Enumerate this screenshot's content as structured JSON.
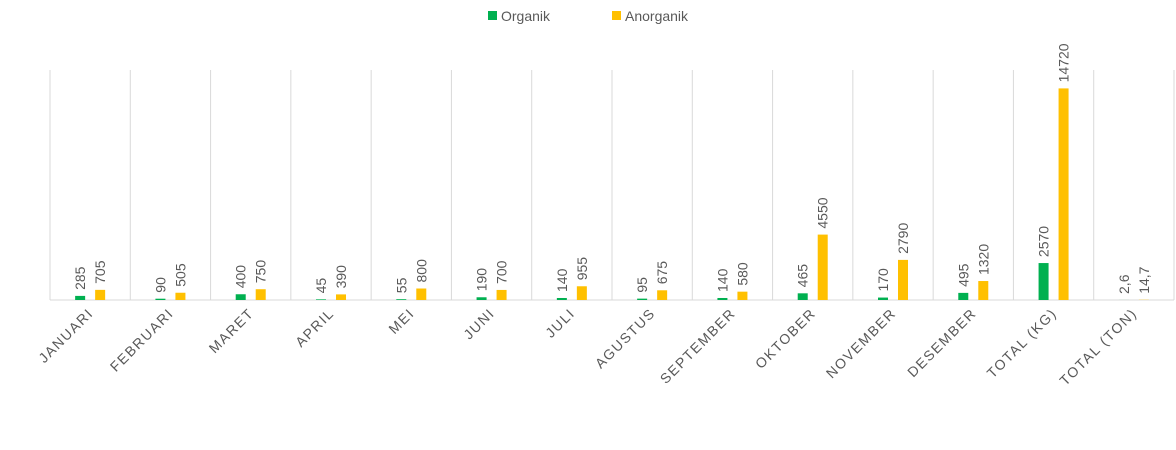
{
  "chart_data": {
    "type": "bar",
    "categories": [
      "JANUARI",
      "FEBRUARI",
      "MARET",
      "APRIL",
      "MEI",
      "JUNI",
      "JULI",
      "AGUSTUS",
      "SEPTEMBER",
      "OKTOBER",
      "NOVEMBER",
      "DESEMBER",
      "TOTAL (KG)",
      "TOTAL (TON)"
    ],
    "series": [
      {
        "name": "Organik",
        "color": "#00b050",
        "values": [
          285,
          90,
          400,
          45,
          55,
          190,
          140,
          95,
          140,
          465,
          170,
          495,
          2570,
          2.6
        ],
        "value_labels": [
          "285",
          "90",
          "400",
          "45",
          "55",
          "190",
          "140",
          "95",
          "140",
          "465",
          "170",
          "495",
          "2570",
          "2,6"
        ]
      },
      {
        "name": "Anorganik",
        "color": "#ffc000",
        "values": [
          705,
          505,
          750,
          390,
          800,
          700,
          955,
          675,
          580,
          4550,
          2790,
          1320,
          14720,
          14.7
        ],
        "value_labels": [
          "705",
          "505",
          "750",
          "390",
          "800",
          "700",
          "955",
          "675",
          "580",
          "4550",
          "2790",
          "1320",
          "14720",
          "14,7"
        ]
      }
    ],
    "ylim": [
      0,
      16000
    ],
    "legend": "top"
  }
}
